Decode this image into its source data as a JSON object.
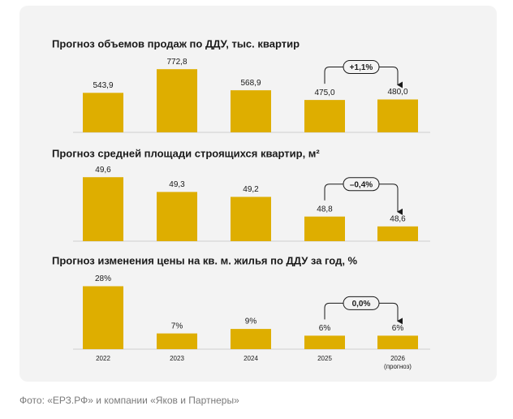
{
  "chart_data": [
    {
      "type": "bar",
      "title": "Прогноз объемов продаж по ДДУ, тыс. квартир",
      "values": [
        543.9,
        772.8,
        568.9,
        475.0,
        480.0
      ],
      "value_labels": [
        "543,9",
        "772,8",
        "568,9",
        "475,0",
        "480,0"
      ],
      "color": "#deae00",
      "ylim": [
        162,
        790
      ],
      "annotation": "+1,1%"
    },
    {
      "type": "bar",
      "title": "Прогноз средней площади строящихся квартир, м²",
      "values": [
        49.6,
        49.3,
        49.2,
        48.8,
        48.6
      ],
      "value_labels": [
        "49,6",
        "49,3",
        "49,2",
        "48,8",
        "48,6"
      ],
      "color": "#deae00",
      "ylim": [
        48.3,
        49.62
      ],
      "annotation": "–0,4%"
    },
    {
      "type": "bar",
      "title": "Прогноз изменения цены на кв. м. жилья по ДДУ за год, %",
      "categories": [
        "2022",
        "2023",
        "2024",
        "2025",
        "2026 (прогноз)"
      ],
      "values": [
        28,
        7,
        9,
        6,
        6
      ],
      "value_labels": [
        "28%",
        "7%",
        "9%",
        "6%",
        "6%"
      ],
      "color": "#deae00",
      "ylim": [
        0,
        28.9
      ],
      "annotation": "0,0%"
    }
  ],
  "caption": "Фото: «ЕРЗ.РФ» и компании «Яков и Партнеры»"
}
